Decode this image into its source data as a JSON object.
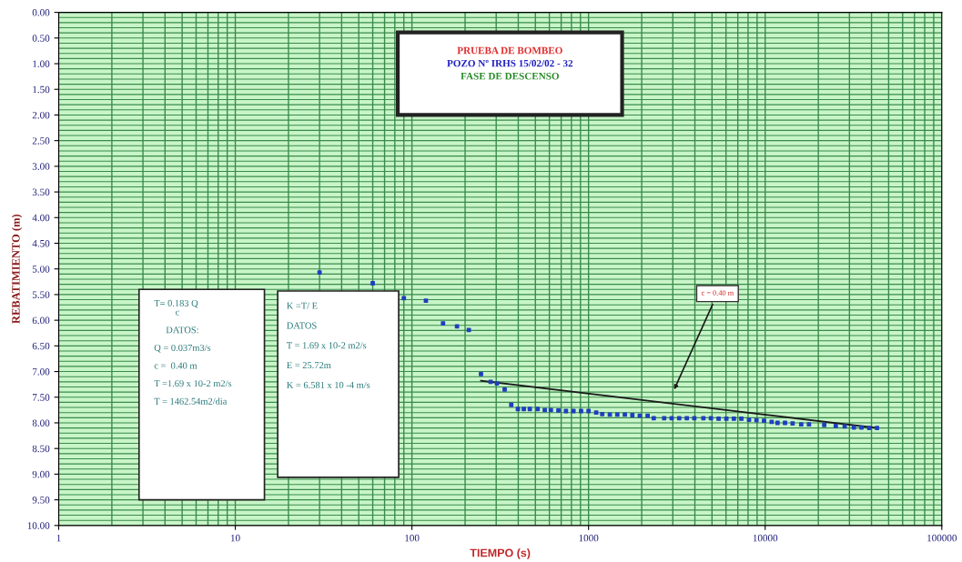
{
  "chart_data": {
    "type": "scatter",
    "title": "PRUEBA DE BOMBEO",
    "subtitle": "POZO Nº IRHS 15/02/02 - 32",
    "xlabel": "TIEMPO (s)",
    "ylabel": "REBATIMIENTO (m)",
    "log": "x",
    "grid": true,
    "legend": false,
    "xlim": [
      1,
      100000
    ],
    "xticks": [
      1,
      10,
      100,
      1000,
      10000,
      100000
    ],
    "ylim": [
      10,
      0
    ],
    "yticks": [
      {
        "value": 0,
        "label": "0.00"
      },
      {
        "value": 0.5,
        "label": "0.50"
      },
      {
        "value": 1,
        "label": "1.00"
      },
      {
        "value": 1.5,
        "label": "1.50"
      },
      {
        "value": 2,
        "label": "2.00"
      },
      {
        "value": 2.5,
        "label": "2.50"
      },
      {
        "value": 3,
        "label": "3.00"
      },
      {
        "value": 3.5,
        "label": "3.50"
      },
      {
        "value": 4,
        "label": "4.00"
      },
      {
        "value": 4.5,
        "label": "4.50"
      },
      {
        "value": 5,
        "label": "5.00"
      },
      {
        "value": 5.5,
        "label": "5.50"
      },
      {
        "value": 6,
        "label": "6.00"
      },
      {
        "value": 6.5,
        "label": "6.50"
      },
      {
        "value": 7,
        "label": "7.00"
      },
      {
        "value": 7.5,
        "label": "7.50"
      },
      {
        "value": 8,
        "label": "8.00"
      },
      {
        "value": 8.5,
        "label": "8.50"
      },
      {
        "value": 9,
        "label": "9.00"
      },
      {
        "value": 9.5,
        "label": "9.50"
      },
      {
        "value": 10,
        "label": "10.00"
      }
    ],
    "series": [
      {
        "marker": "square",
        "color": "#1f3fbf",
        "x": [
          30,
          60,
          90,
          120,
          150,
          180,
          210,
          246,
          279,
          303,
          335,
          365,
          398,
          430,
          465,
          515,
          565,
          612,
          675,
          745,
          822,
          907,
          1000,
          1105,
          1195,
          1320,
          1455,
          1605,
          1770,
          1950,
          2160,
          2340,
          2680,
          2955,
          3260,
          3600,
          3970,
          4470,
          4930,
          5450,
          6030,
          6650,
          7330,
          8100,
          8930,
          9850,
          10880,
          11750,
          12950,
          14300,
          16000,
          17700,
          21600,
          25100,
          28200,
          31800,
          35100,
          38800,
          43000
        ],
        "values": [
          5.07,
          5.28,
          5.57,
          5.62,
          6.06,
          6.12,
          6.19,
          7.05,
          7.2,
          7.23,
          7.35,
          7.65,
          7.73,
          7.73,
          7.73,
          7.73,
          7.75,
          7.75,
          7.76,
          7.77,
          7.77,
          7.77,
          7.77,
          7.8,
          7.83,
          7.84,
          7.84,
          7.84,
          7.85,
          7.86,
          7.86,
          7.91,
          7.91,
          7.91,
          7.91,
          7.91,
          7.91,
          7.91,
          7.91,
          7.92,
          7.92,
          7.92,
          7.92,
          7.94,
          7.95,
          7.96,
          7.98,
          8.0,
          8.0,
          8.01,
          8.03,
          8.03,
          8.04,
          8.06,
          8.07,
          8.09,
          8.09,
          8.1,
          8.1
        ]
      },
      {
        "type": "line",
        "color": "#1a1a1a",
        "x": [
          246,
          43000
        ],
        "values": [
          7.18,
          8.1
        ]
      }
    ],
    "annotations": [
      "FASE DE DESCENSO",
      "T= 0.183 Q\n         c\n\n     DATOS:\n\nQ = 0.037m3/s\n\nc =  0.40 m\n\nT =1.69 x 10-2 m2/s\n\nT = 1462.54m2/dia",
      "K =T/ E\n\nDATOS\n\nT = 1.69 x 10-2 m2/s\n\nE = 25.72m\n\nK = 6.581 x 10 -4 m/s",
      "c = 0.40 m"
    ]
  }
}
